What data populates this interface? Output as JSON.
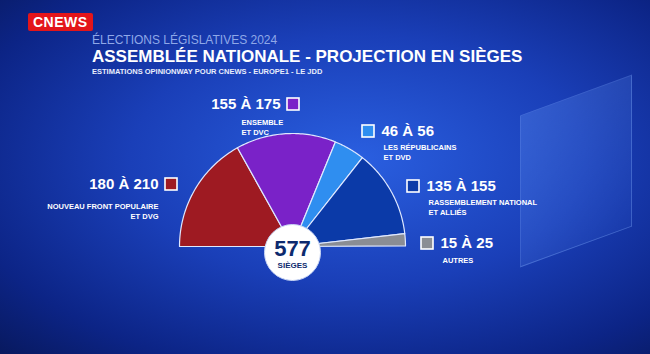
{
  "chart_data": {
    "type": "hemicycle",
    "brand": "CNEWS",
    "supertitle": "ÉLECTIONS LÉGISLATIVES 2024",
    "title": "ASSEMBLÉE NATIONALE - PROJECTION EN SIÈGES",
    "subtitle": "ESTIMATIONS OPINIONWAY POUR CNEWS - EUROPE1 - LE JDD",
    "categories": [
      "NOUVEAU FRONT POPULAIRE\nET DVG",
      "ENSEMBLE\nET DVC",
      "LES RÉPUBLICAINS\nET DVD",
      "RASSEMBLEMENT NATIONAL\nET ALLIÉS",
      "AUTRES"
    ],
    "low": [
      180,
      155,
      46,
      135,
      15
    ],
    "high": [
      210,
      175,
      56,
      155,
      25
    ],
    "value_labels": [
      "180 À 210",
      "155 À 175",
      "46 À 56",
      "135 À 155",
      "15 À 25"
    ],
    "colors": [
      "#9e1a22",
      "#7a22c8",
      "#2f8ef0",
      "#0b3aa8",
      "#8a8d94"
    ],
    "total": 577,
    "total_label": "SIÈGES",
    "data_labels": true
  }
}
